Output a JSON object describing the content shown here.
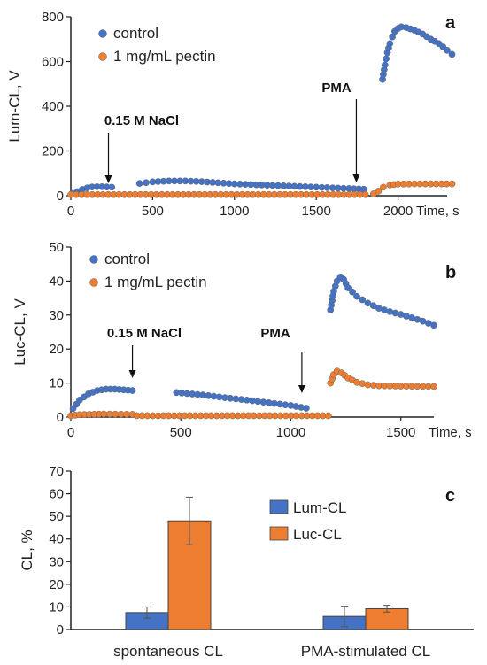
{
  "colors": {
    "control": "#4472C4",
    "pectin": "#ED7D31",
    "lum": "#4472C4",
    "luc": "#ED7D31"
  },
  "chart_data": [
    {
      "panel": "a",
      "type": "scatter",
      "ylabel": "Lum-CL, V",
      "xlabel": "Time, s",
      "xlim": [
        0,
        2300
      ],
      "ylim": [
        0,
        800
      ],
      "xticks": [
        0,
        500,
        1000,
        1500,
        2000
      ],
      "yticks": [
        0,
        200,
        400,
        600,
        800
      ],
      "legend": [
        "control",
        "1 mg/mL pectin"
      ],
      "annotations": [
        {
          "text": "0.15 M NaCl",
          "x": 230
        },
        {
          "text": "PMA",
          "x": 1745
        }
      ],
      "series": [
        {
          "name": "control",
          "segments": [
            [
              [
                10,
                10
              ],
              [
                40,
                18
              ],
              [
                70,
                28
              ],
              [
                100,
                35
              ],
              [
                130,
                39
              ],
              [
                160,
                40
              ],
              [
                190,
                40
              ],
              [
                220,
                39
              ],
              [
                250,
                38
              ]
            ],
            [
              [
                420,
                55
              ],
              [
                500,
                62
              ],
              [
                600,
                66
              ],
              [
                700,
                66
              ],
              [
                800,
                63
              ],
              [
                900,
                58
              ],
              [
                1000,
                53
              ],
              [
                1100,
                50
              ],
              [
                1200,
                47
              ],
              [
                1300,
                44
              ],
              [
                1400,
                41
              ],
              [
                1500,
                38
              ],
              [
                1600,
                35
              ],
              [
                1700,
                32
              ],
              [
                1790,
                29
              ]
            ],
            [
              [
                1905,
                520
              ],
              [
                1920,
                585
              ],
              [
                1935,
                640
              ],
              [
                1950,
                680
              ],
              [
                1965,
                710
              ],
              [
                1980,
                735
              ],
              [
                2000,
                748
              ],
              [
                2020,
                755
              ],
              [
                2050,
                752
              ],
              [
                2100,
                740
              ],
              [
                2150,
                723
              ],
              [
                2200,
                700
              ],
              [
                2250,
                680
              ],
              [
                2300,
                650
              ],
              [
                2330,
                632
              ]
            ]
          ]
        },
        {
          "name": "1 mg/mL pectin",
          "segments": [
            [
              [
                0,
                5
              ],
              [
                1800,
                5
              ]
            ],
            [
              [
                1850,
                8
              ],
              [
                1880,
                20
              ],
              [
                1910,
                38
              ],
              [
                1950,
                48
              ],
              [
                2000,
                52
              ],
              [
                2100,
                53
              ],
              [
                2200,
                53
              ],
              [
                2330,
                53
              ]
            ]
          ]
        }
      ]
    },
    {
      "panel": "b",
      "type": "scatter",
      "ylabel": "Luc-CL, V",
      "xlabel": "Time, s",
      "xlim": [
        0,
        1650
      ],
      "ylim": [
        0,
        50
      ],
      "xticks": [
        0,
        500,
        1000,
        1500
      ],
      "yticks": [
        0,
        10,
        20,
        30,
        40,
        50
      ],
      "legend": [
        "control",
        "1 mg/mL pectin"
      ],
      "annotations": [
        {
          "text": "0.15 M NaCl",
          "x": 280
        },
        {
          "text": "PMA",
          "x": 1050
        }
      ],
      "series": [
        {
          "name": "control",
          "segments": [
            [
              [
                10,
                2.5
              ],
              [
                40,
                5
              ],
              [
                80,
                6.8
              ],
              [
                120,
                7.8
              ],
              [
                160,
                8.2
              ],
              [
                200,
                8.2
              ],
              [
                240,
                8
              ],
              [
                280,
                7.8
              ]
            ],
            [
              [
                480,
                7.2
              ],
              [
                600,
                6.5
              ],
              [
                700,
                5.7
              ],
              [
                800,
                5
              ],
              [
                900,
                4.2
              ],
              [
                1000,
                3.4
              ],
              [
                1070,
                2.6
              ]
            ],
            [
              [
                1180,
                31.5
              ],
              [
                1195,
                37
              ],
              [
                1210,
                40
              ],
              [
                1225,
                41.2
              ],
              [
                1240,
                40.5
              ],
              [
                1260,
                38
              ],
              [
                1300,
                35.5
              ],
              [
                1350,
                33.5
              ],
              [
                1400,
                32
              ],
              [
                1450,
                31
              ],
              [
                1500,
                30.2
              ],
              [
                1550,
                29.2
              ],
              [
                1600,
                28.2
              ],
              [
                1650,
                27
              ]
            ]
          ]
        },
        {
          "name": "1 mg/mL pectin",
          "segments": [
            [
              [
                0,
                0.4
              ],
              [
                40,
                0.7
              ],
              [
                150,
                0.9
              ],
              [
                280,
                0.8
              ]
            ],
            [
              [
                300,
                0.4
              ],
              [
                1170,
                0.4
              ]
            ],
            [
              [
                1180,
                10
              ],
              [
                1195,
                12.5
              ],
              [
                1210,
                13.5
              ],
              [
                1230,
                13
              ],
              [
                1260,
                11.5
              ],
              [
                1300,
                10.2
              ],
              [
                1350,
                9.5
              ],
              [
                1400,
                9.2
              ],
              [
                1500,
                9.1
              ],
              [
                1650,
                9
              ]
            ]
          ]
        }
      ]
    },
    {
      "panel": "c",
      "type": "bar",
      "ylabel": "CL, %",
      "ylim": [
        0,
        70
      ],
      "yticks": [
        0,
        10,
        20,
        30,
        40,
        50,
        60,
        70
      ],
      "categories": [
        "spontaneous CL",
        "PMA-stimulated CL"
      ],
      "series": [
        {
          "name": "Lum-CL",
          "values": [
            7.5,
            5.8
          ],
          "errors": [
            2.5,
            4.5
          ]
        },
        {
          "name": "Luc-CL",
          "values": [
            48,
            9.2
          ],
          "errors": [
            10.5,
            1.5
          ]
        }
      ]
    }
  ]
}
